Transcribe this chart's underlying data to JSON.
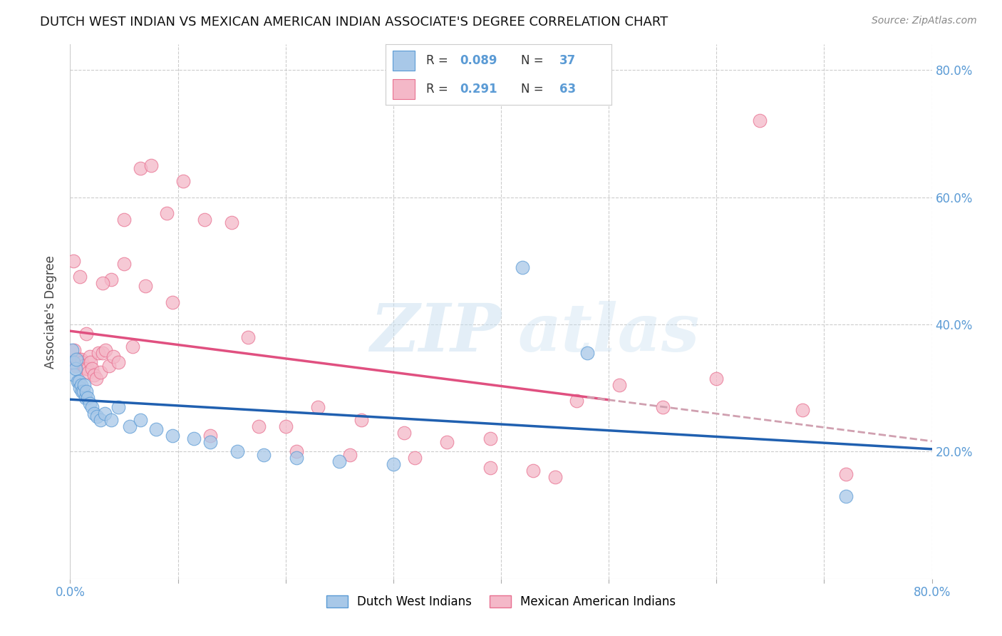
{
  "title": "DUTCH WEST INDIAN VS MEXICAN AMERICAN INDIAN ASSOCIATE'S DEGREE CORRELATION CHART",
  "source": "Source: ZipAtlas.com",
  "ylabel": "Associate's Degree",
  "watermark_zip": "ZIP",
  "watermark_atlas": "atlas",
  "blue_R": 0.089,
  "blue_N": 37,
  "pink_R": 0.291,
  "pink_N": 63,
  "blue_fill": "#a8c8e8",
  "blue_edge": "#5b9bd5",
  "pink_fill": "#f4b8c8",
  "pink_edge": "#e87090",
  "blue_line": "#2060b0",
  "pink_line": "#e05080",
  "pink_dash": "#d0a0b0",
  "legend_label_blue": "Dutch West Indians",
  "legend_label_pink": "Mexican American Indians",
  "xlim": [
    0.0,
    0.8
  ],
  "ylim": [
    0.0,
    0.84
  ],
  "yticks": [
    0.2,
    0.4,
    0.6,
    0.8
  ],
  "xtick_show": [
    0.0,
    0.8
  ],
  "xtick_all": [
    0.0,
    0.1,
    0.2,
    0.3,
    0.4,
    0.5,
    0.6,
    0.7,
    0.8
  ],
  "blue_x": [
    0.002,
    0.003,
    0.004,
    0.005,
    0.006,
    0.007,
    0.008,
    0.009,
    0.01,
    0.011,
    0.012,
    0.013,
    0.014,
    0.015,
    0.016,
    0.018,
    0.02,
    0.022,
    0.025,
    0.028,
    0.032,
    0.038,
    0.045,
    0.055,
    0.065,
    0.08,
    0.095,
    0.115,
    0.13,
    0.155,
    0.18,
    0.21,
    0.25,
    0.3,
    0.42,
    0.48,
    0.72
  ],
  "blue_y": [
    0.36,
    0.34,
    0.32,
    0.33,
    0.345,
    0.31,
    0.31,
    0.3,
    0.305,
    0.295,
    0.295,
    0.305,
    0.285,
    0.295,
    0.285,
    0.275,
    0.27,
    0.26,
    0.255,
    0.25,
    0.26,
    0.25,
    0.27,
    0.24,
    0.25,
    0.235,
    0.225,
    0.22,
    0.215,
    0.2,
    0.195,
    0.19,
    0.185,
    0.18,
    0.49,
    0.355,
    0.13
  ],
  "pink_x": [
    0.002,
    0.003,
    0.004,
    0.005,
    0.006,
    0.007,
    0.008,
    0.009,
    0.01,
    0.011,
    0.012,
    0.013,
    0.014,
    0.015,
    0.016,
    0.017,
    0.018,
    0.019,
    0.02,
    0.022,
    0.024,
    0.026,
    0.028,
    0.03,
    0.033,
    0.036,
    0.04,
    0.045,
    0.05,
    0.058,
    0.065,
    0.075,
    0.09,
    0.105,
    0.125,
    0.15,
    0.175,
    0.2,
    0.23,
    0.27,
    0.31,
    0.35,
    0.39,
    0.43,
    0.47,
    0.51,
    0.55,
    0.6,
    0.64,
    0.68,
    0.72,
    0.45,
    0.39,
    0.32,
    0.26,
    0.21,
    0.165,
    0.13,
    0.095,
    0.07,
    0.05,
    0.038,
    0.03
  ],
  "pink_y": [
    0.34,
    0.5,
    0.36,
    0.335,
    0.335,
    0.345,
    0.345,
    0.475,
    0.345,
    0.34,
    0.335,
    0.335,
    0.33,
    0.385,
    0.33,
    0.325,
    0.35,
    0.34,
    0.33,
    0.32,
    0.315,
    0.355,
    0.325,
    0.355,
    0.36,
    0.335,
    0.35,
    0.34,
    0.565,
    0.365,
    0.645,
    0.65,
    0.575,
    0.625,
    0.565,
    0.56,
    0.24,
    0.24,
    0.27,
    0.25,
    0.23,
    0.215,
    0.22,
    0.17,
    0.28,
    0.305,
    0.27,
    0.315,
    0.72,
    0.265,
    0.165,
    0.16,
    0.175,
    0.19,
    0.195,
    0.2,
    0.38,
    0.225,
    0.435,
    0.46,
    0.495,
    0.47,
    0.465
  ]
}
